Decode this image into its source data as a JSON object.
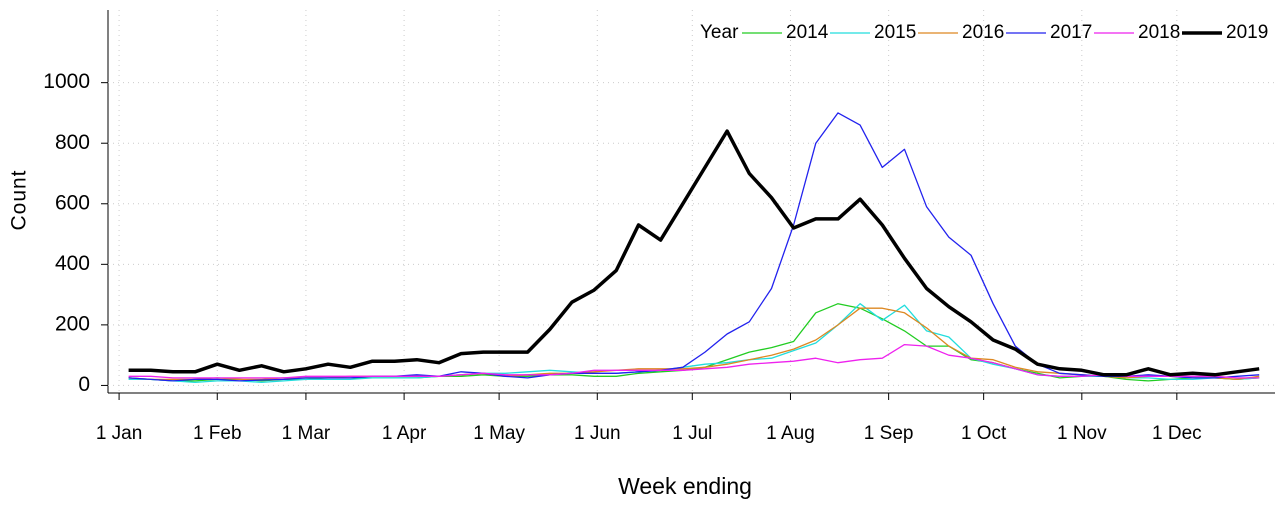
{
  "chart_data": {
    "type": "line",
    "x_label": "Week ending",
    "y_label": "Count",
    "legend_title": "Year",
    "legend": "top-right",
    "grid": true,
    "x": [
      4,
      11,
      18,
      25,
      32,
      39,
      46,
      53,
      60,
      67,
      74,
      81,
      88,
      95,
      102,
      109,
      116,
      123,
      130,
      137,
      144,
      151,
      158,
      165,
      172,
      179,
      186,
      193,
      200,
      207,
      214,
      221,
      228,
      235,
      242,
      249,
      256,
      263,
      270,
      277,
      284,
      291,
      298,
      305,
      312,
      319,
      326,
      333,
      340,
      347,
      354,
      361
    ],
    "xlim": [
      -2.5,
      366
    ],
    "xticks": [
      {
        "value": 1,
        "label": "1 Jan"
      },
      {
        "value": 32,
        "label": "1 Feb"
      },
      {
        "value": 60,
        "label": "1 Mar"
      },
      {
        "value": 91,
        "label": "1 Apr"
      },
      {
        "value": 121,
        "label": "1 May"
      },
      {
        "value": 152,
        "label": "1 Jun"
      },
      {
        "value": 182,
        "label": "1 Jul"
      },
      {
        "value": 213,
        "label": "1 Aug"
      },
      {
        "value": 244,
        "label": "1 Sep"
      },
      {
        "value": 274,
        "label": "1 Oct"
      },
      {
        "value": 305,
        "label": "1 Nov"
      },
      {
        "value": 335,
        "label": "1 Dec"
      }
    ],
    "ylim": [
      -25,
      1240
    ],
    "yticks": [
      0,
      200,
      400,
      600,
      800,
      1000
    ],
    "series": [
      {
        "name": "2014",
        "color": "#22cc22",
        "line_width": 1.3,
        "values": [
          25,
          20,
          15,
          15,
          20,
          20,
          15,
          20,
          20,
          25,
          25,
          25,
          25,
          25,
          30,
          30,
          35,
          30,
          30,
          35,
          35,
          30,
          30,
          40,
          45,
          50,
          60,
          85,
          110,
          125,
          145,
          240,
          270,
          255,
          220,
          180,
          130,
          130,
          85,
          75,
          55,
          40,
          25,
          30,
          30,
          20,
          15,
          20,
          25,
          25,
          20,
          25
        ]
      },
      {
        "name": "2015",
        "color": "#22dddd",
        "line_width": 1.3,
        "values": [
          20,
          20,
          15,
          10,
          15,
          15,
          10,
          15,
          20,
          20,
          20,
          25,
          25,
          25,
          30,
          35,
          40,
          40,
          45,
          50,
          45,
          40,
          40,
          45,
          50,
          60,
          70,
          75,
          85,
          90,
          115,
          140,
          200,
          270,
          215,
          265,
          180,
          160,
          90,
          70,
          55,
          35,
          30,
          30,
          30,
          25,
          25,
          20,
          20,
          25,
          20,
          25
        ]
      },
      {
        "name": "2016",
        "color": "#dd8822",
        "line_width": 1.3,
        "values": [
          25,
          20,
          20,
          20,
          25,
          20,
          20,
          25,
          25,
          25,
          30,
          30,
          30,
          30,
          30,
          35,
          40,
          30,
          35,
          40,
          40,
          45,
          50,
          55,
          55,
          55,
          60,
          70,
          85,
          100,
          120,
          150,
          200,
          255,
          255,
          240,
          190,
          130,
          90,
          85,
          60,
          45,
          40,
          35,
          30,
          25,
          30,
          30,
          25,
          25,
          20,
          30
        ]
      },
      {
        "name": "2017",
        "color": "#2222ee",
        "line_width": 1.3,
        "values": [
          25,
          20,
          15,
          20,
          20,
          15,
          18,
          20,
          25,
          25,
          25,
          30,
          30,
          35,
          30,
          45,
          40,
          30,
          25,
          35,
          40,
          40,
          40,
          45,
          50,
          60,
          110,
          170,
          210,
          320,
          530,
          800,
          900,
          860,
          720,
          780,
          590,
          490,
          430,
          270,
          130,
          70,
          40,
          35,
          30,
          30,
          35,
          30,
          25,
          25,
          30,
          35
        ]
      },
      {
        "name": "2018",
        "color": "#ee22ee",
        "line_width": 1.3,
        "values": [
          30,
          30,
          25,
          25,
          25,
          25,
          25,
          25,
          30,
          30,
          30,
          30,
          30,
          30,
          30,
          35,
          40,
          35,
          35,
          35,
          40,
          50,
          50,
          50,
          50,
          50,
          55,
          60,
          70,
          75,
          80,
          90,
          75,
          85,
          90,
          135,
          130,
          100,
          90,
          75,
          55,
          35,
          30,
          30,
          35,
          30,
          30,
          30,
          30,
          30,
          25,
          25
        ]
      },
      {
        "name": "2019",
        "color": "#000000",
        "line_width": 3.5,
        "values": [
          50,
          50,
          45,
          45,
          70,
          50,
          65,
          45,
          55,
          70,
          60,
          80,
          80,
          85,
          75,
          105,
          110,
          110,
          110,
          185,
          275,
          315,
          380,
          530,
          480,
          600,
          720,
          840,
          700,
          620,
          520,
          550,
          550,
          615,
          530,
          420,
          320,
          260,
          210,
          150,
          120,
          70,
          55,
          50,
          35,
          35,
          55,
          35,
          40,
          35,
          45,
          55
        ]
      }
    ]
  }
}
